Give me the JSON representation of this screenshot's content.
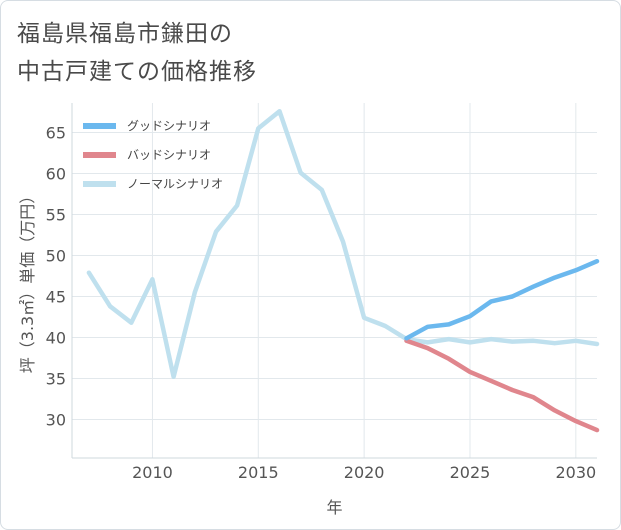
{
  "page": {
    "title_line1": "福島県福島市鎌田の",
    "title_line2": "中古戸建ての価格推移"
  },
  "chart_data": {
    "type": "line",
    "xlabel": "年",
    "ylabel": "坪（3.3㎡）単価（万円）",
    "xlim": [
      2006.2,
      2031.0
    ],
    "ylim": [
      25.3,
      68.6
    ],
    "xticks": [
      2010,
      2015,
      2020,
      2025,
      2030
    ],
    "yticks": [
      30,
      35,
      40,
      45,
      50,
      55,
      60,
      65
    ],
    "grid": true,
    "legend_position": "top-left",
    "series": [
      {
        "name": "グッドシナリオ",
        "color": "#6bb8ee",
        "x": [
          2022,
          2023,
          2024,
          2025,
          2026,
          2027,
          2028,
          2029,
          2030,
          2031
        ],
        "y": [
          39.9,
          41.3,
          41.6,
          42.6,
          44.4,
          45.0,
          46.2,
          47.3,
          48.2,
          49.3
        ]
      },
      {
        "name": "バッドシナリオ",
        "color": "#e0868d",
        "x": [
          2022,
          2023,
          2024,
          2025,
          2026,
          2027,
          2028,
          2029,
          2030,
          2031
        ],
        "y": [
          39.6,
          38.7,
          37.4,
          35.8,
          34.7,
          33.6,
          32.7,
          31.1,
          29.8,
          28.7
        ]
      },
      {
        "name": "ノーマルシナリオ",
        "color": "#bfe0ee",
        "x": [
          2007,
          2008,
          2009,
          2010,
          2011,
          2012,
          2013,
          2014,
          2015,
          2016,
          2017,
          2018,
          2019,
          2020,
          2021,
          2022,
          2023,
          2024,
          2025,
          2026,
          2027,
          2028,
          2029,
          2030,
          2031
        ],
        "y": [
          47.9,
          43.8,
          41.8,
          47.1,
          35.2,
          45.5,
          52.9,
          56.1,
          65.5,
          67.6,
          60.1,
          58.0,
          51.7,
          42.4,
          41.4,
          39.8,
          39.4,
          39.8,
          39.4,
          39.8,
          39.5,
          39.6,
          39.3,
          39.6,
          39.2
        ]
      }
    ]
  }
}
